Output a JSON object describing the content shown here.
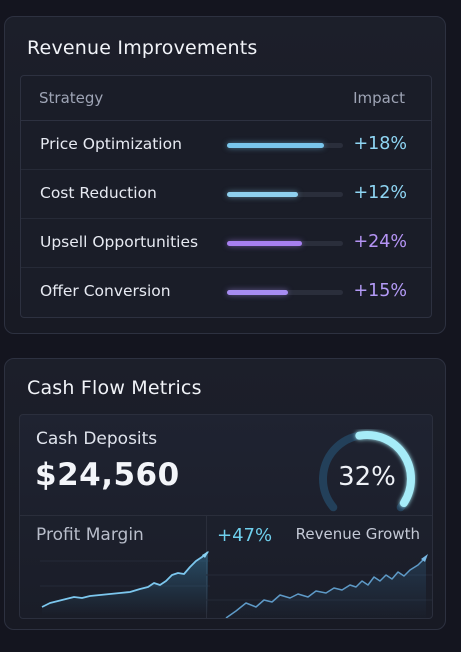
{
  "revenue": {
    "title": "Revenue Improvements",
    "columns": {
      "strategy": "Strategy",
      "impact": "Impact"
    },
    "rows": [
      {
        "label": "Price Optimization",
        "impact": "+18%",
        "level": 0.84,
        "color": "#79c6ec",
        "text_color": "#8fd6f4"
      },
      {
        "label": "Cost Reduction",
        "impact": "+12%",
        "level": 0.61,
        "color": "#8fd0ef",
        "text_color": "#8fd6f4"
      },
      {
        "label": "Upsell Opportunities",
        "impact": "+24%",
        "level": 0.65,
        "color": "#a77ff0",
        "text_color": "#b594f5"
      },
      {
        "label": "Offer Conversion",
        "impact": "+15%",
        "level": 0.53,
        "color": "#a78cf2",
        "text_color": "#b39af6"
      }
    ]
  },
  "cash_flow": {
    "title": "Cash Flow Metrics",
    "deposits_label": "Cash Deposits",
    "deposits_value": "$24,560",
    "gauge_value": "32%",
    "gauge_level": 0.32,
    "profit_margin_label": "Profit Margin",
    "profit_margin_value": "+47%",
    "revenue_growth_label": "Revenue Growth"
  },
  "colors": {
    "accent_cyan": "#6fd0ee",
    "accent_purple": "#a77ff0",
    "background": "#14151f",
    "card": "#1c1f2a"
  }
}
